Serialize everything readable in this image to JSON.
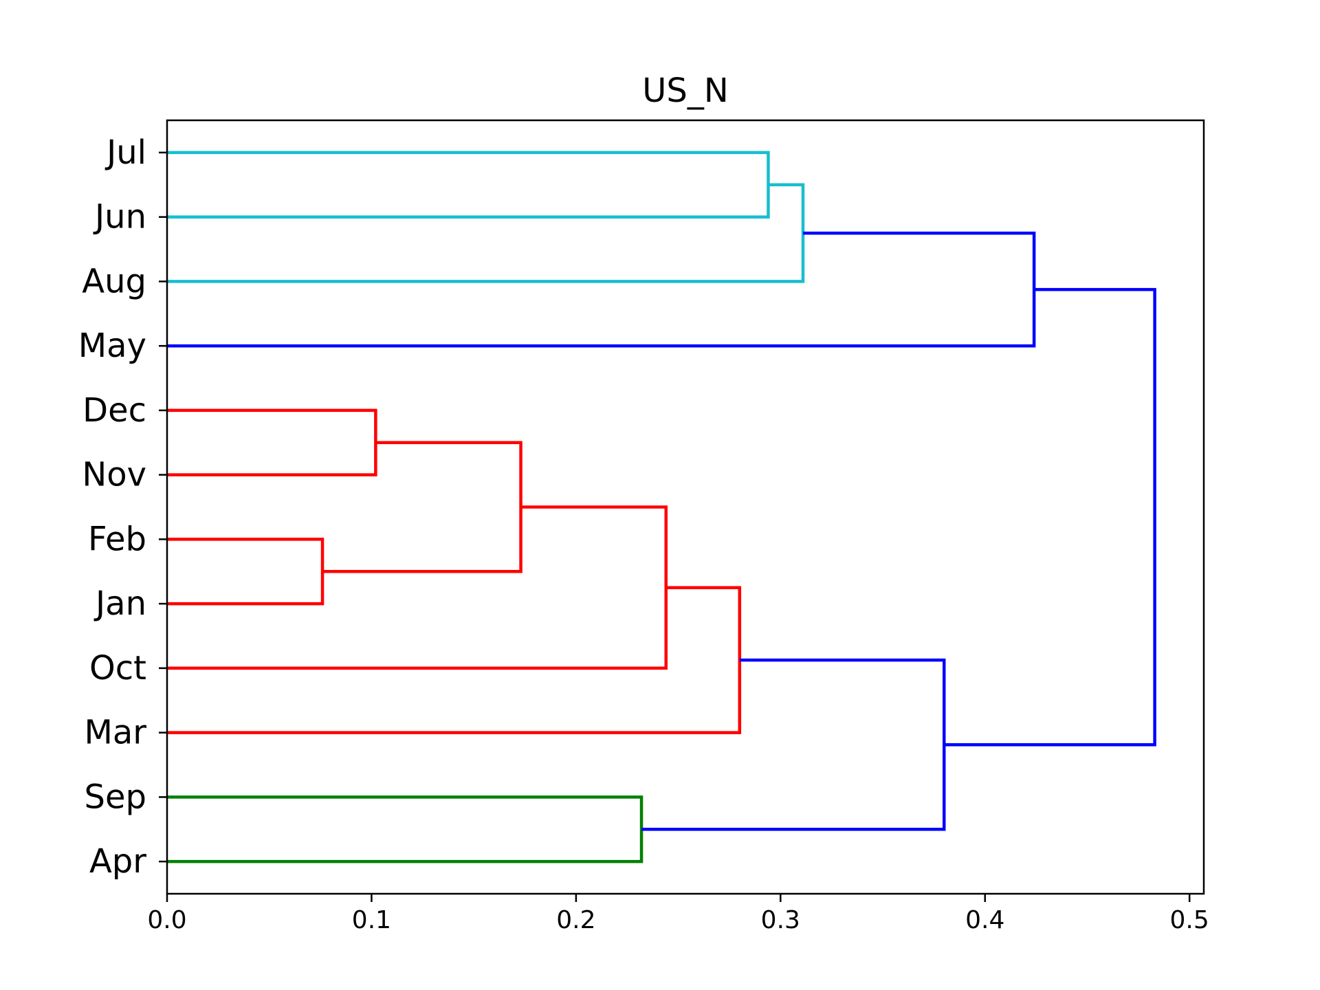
{
  "chart_data": {
    "type": "dendrogram",
    "title": "US_N",
    "xlabel": "",
    "ylabel": "",
    "orientation": "horizontal",
    "xlim": [
      0,
      0.507
    ],
    "x_ticks": [
      0.0,
      0.1,
      0.2,
      0.3,
      0.4,
      0.5
    ],
    "x_tick_labels": [
      "0.0",
      "0.1",
      "0.2",
      "0.3",
      "0.4",
      "0.5"
    ],
    "grid": false,
    "legend": "none",
    "leaves": [
      "Jul",
      "Jun",
      "Aug",
      "May",
      "Dec",
      "Nov",
      "Feb",
      "Jan",
      "Oct",
      "Mar",
      "Sep",
      "Apr"
    ],
    "colors": {
      "cluster_1": "#17becf",
      "cluster_2": "#ff0000",
      "cluster_3": "#008000",
      "above_threshold": "#0000ff",
      "axes": "#000000"
    },
    "merges": [
      {
        "id": "n1",
        "left": "Jul",
        "right": "Jun",
        "height": 0.294,
        "color": "#17becf"
      },
      {
        "id": "n2",
        "left": "n1",
        "right": "Aug",
        "height": 0.311,
        "color": "#17becf"
      },
      {
        "id": "n3",
        "left": "n2",
        "right": "May",
        "height": 0.424,
        "color": "#0000ff"
      },
      {
        "id": "n4",
        "left": "Dec",
        "right": "Nov",
        "height": 0.102,
        "color": "#ff0000"
      },
      {
        "id": "n5",
        "left": "Feb",
        "right": "Jan",
        "height": 0.076,
        "color": "#ff0000"
      },
      {
        "id": "n6",
        "left": "n4",
        "right": "n5",
        "height": 0.173,
        "color": "#ff0000"
      },
      {
        "id": "n7",
        "left": "n6",
        "right": "Oct",
        "height": 0.244,
        "color": "#ff0000"
      },
      {
        "id": "n8",
        "left": "n7",
        "right": "Mar",
        "height": 0.28,
        "color": "#ff0000"
      },
      {
        "id": "n9",
        "left": "Sep",
        "right": "Apr",
        "height": 0.232,
        "color": "#008000"
      },
      {
        "id": "n10",
        "left": "n8",
        "right": "n9",
        "height": 0.38,
        "color": "#0000ff"
      },
      {
        "id": "n11",
        "left": "n3",
        "right": "n10",
        "height": 0.483,
        "color": "#0000ff"
      }
    ]
  }
}
